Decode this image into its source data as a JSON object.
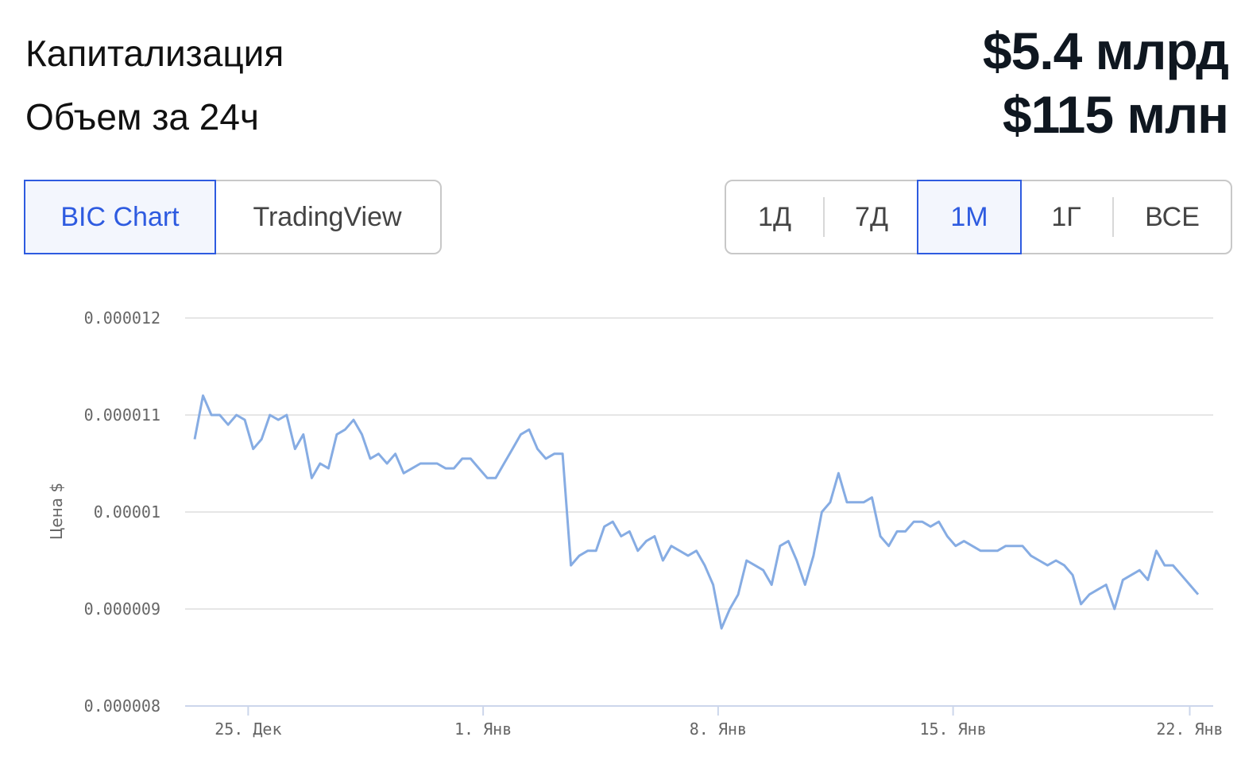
{
  "header": {
    "market_cap_label": "Капитализация",
    "volume_label": "Объем за 24ч",
    "market_cap_value": "$5.4 млрд",
    "volume_value": "$115 млн"
  },
  "source_tabs": {
    "items": [
      "BIC Chart",
      "TradingView"
    ],
    "selected": 0
  },
  "period_tabs": {
    "items": [
      "1Д",
      "7Д",
      "1М",
      "1Г",
      "ВСЕ"
    ],
    "selected": 2
  },
  "chart_data": {
    "type": "line",
    "y_label": "Цена $",
    "color": "#86ace3",
    "grid": true,
    "ylim": [
      8e-06,
      1.2e-05
    ],
    "yticks": [
      8e-06,
      9e-06,
      1e-05,
      1.1e-05,
      1.2e-05
    ],
    "xlim": [
      0,
      120
    ],
    "xticks": [
      {
        "value": 6.4,
        "label": "25. Дек"
      },
      {
        "value": 34.5,
        "label": "1. Янв"
      },
      {
        "value": 62.6,
        "label": "8. Янв"
      },
      {
        "value": 90.7,
        "label": "15. Янв"
      },
      {
        "value": 119,
        "label": "22. Янв"
      }
    ],
    "values": [
      1.075e-05,
      1.12e-05,
      1.1e-05,
      1.1e-05,
      1.09e-05,
      1.1e-05,
      1.095e-05,
      1.065e-05,
      1.075e-05,
      1.1e-05,
      1.095e-05,
      1.1e-05,
      1.065e-05,
      1.08e-05,
      1.035e-05,
      1.05e-05,
      1.045e-05,
      1.08e-05,
      1.085e-05,
      1.095e-05,
      1.08e-05,
      1.055e-05,
      1.06e-05,
      1.05e-05,
      1.06e-05,
      1.04e-05,
      1.045e-05,
      1.05e-05,
      1.05e-05,
      1.05e-05,
      1.045e-05,
      1.045e-05,
      1.055e-05,
      1.055e-05,
      1.045e-05,
      1.035e-05,
      1.035e-05,
      1.05e-05,
      1.065e-05,
      1.08e-05,
      1.085e-05,
      1.065e-05,
      1.055e-05,
      1.06e-05,
      1.06e-05,
      9.45e-06,
      9.55e-06,
      9.6e-06,
      9.6e-06,
      9.85e-06,
      9.9e-06,
      9.75e-06,
      9.8e-06,
      9.6e-06,
      9.7e-06,
      9.75e-06,
      9.5e-06,
      9.65e-06,
      9.6e-06,
      9.55e-06,
      9.6e-06,
      9.45e-06,
      9.25e-06,
      8.8e-06,
      9e-06,
      9.15e-06,
      9.5e-06,
      9.45e-06,
      9.4e-06,
      9.25e-06,
      9.65e-06,
      9.7e-06,
      9.5e-06,
      9.25e-06,
      9.55e-06,
      1e-05,
      1.01e-05,
      1.04e-05,
      1.01e-05,
      1.01e-05,
      1.01e-05,
      1.015e-05,
      9.75e-06,
      9.65e-06,
      9.8e-06,
      9.8e-06,
      9.9e-06,
      9.9e-06,
      9.85e-06,
      9.9e-06,
      9.75e-06,
      9.65e-06,
      9.7e-06,
      9.65e-06,
      9.6e-06,
      9.6e-06,
      9.6e-06,
      9.65e-06,
      9.65e-06,
      9.65e-06,
      9.55e-06,
      9.5e-06,
      9.45e-06,
      9.5e-06,
      9.45e-06,
      9.35e-06,
      9.05e-06,
      9.15e-06,
      9.2e-06,
      9.25e-06,
      9e-06,
      9.3e-06,
      9.35e-06,
      9.4e-06,
      9.3e-06,
      9.6e-06,
      9.45e-06,
      9.45e-06,
      9.35e-06,
      9.25e-06,
      9.15e-06
    ]
  }
}
